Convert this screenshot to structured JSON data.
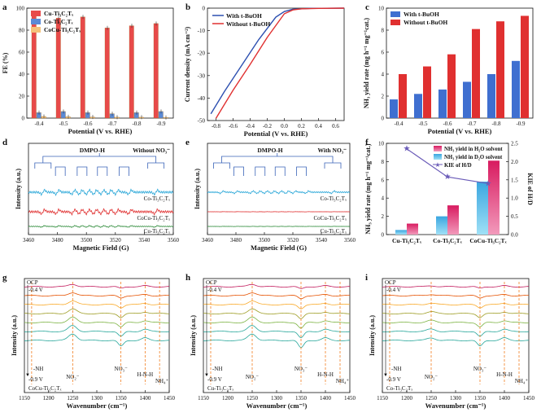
{
  "chart_data": [
    {
      "panel": "a",
      "type": "bar",
      "xlabel": "Potential (V vs. RHE)",
      "ylabel": "FE (%)",
      "ylim": [
        0,
        100
      ],
      "yticks": [
        0,
        20,
        40,
        60,
        80,
        100
      ],
      "categories": [
        "-0.4",
        "-0.5",
        "-0.6",
        "-0.7",
        "-0.8",
        "-0.9"
      ],
      "legend": [
        "Cu-Ti₃C₂Tₓ",
        "Co-Ti₃C₂Tₓ",
        "CoCu-Ti₃C₂Tₓ"
      ],
      "series": [
        {
          "name": "Cu-Ti₃C₂Tₓ",
          "color": "#f5c27a",
          "values": [
            1.5,
            1.2,
            1.0,
            0.8,
            0.8,
            0.6
          ]
        },
        {
          "name": "Co-Ti₃C₂Tₓ",
          "color": "#5b8ad6",
          "values": [
            5,
            6,
            5,
            4,
            5,
            6
          ]
        },
        {
          "name": "CoCu-Ti₃C₂Tₓ",
          "color": "#e84a4a",
          "values": [
            95,
            91,
            92,
            82,
            84,
            86
          ]
        }
      ]
    },
    {
      "panel": "b",
      "type": "line",
      "xlabel": "Potential (V vs. RHE)",
      "ylabel": "Current density (mA cm⁻²)",
      "xlim": [
        -0.9,
        0.7
      ],
      "ylim": [
        -50,
        0
      ],
      "xticks": [
        -0.8,
        -0.6,
        -0.4,
        -0.2,
        0.0,
        0.2,
        0.4,
        0.6
      ],
      "yticks": [
        0,
        -10,
        -20,
        -30,
        -40,
        -50
      ],
      "series": [
        {
          "name": "With t-BuOH",
          "color": "#2c4fb0",
          "x": [
            -0.86,
            -0.7,
            -0.5,
            -0.3,
            -0.1,
            0.0,
            0.1,
            0.3,
            0.7
          ],
          "y": [
            -47,
            -37,
            -25.5,
            -14,
            -4,
            -1.5,
            -0.5,
            -0.1,
            0
          ]
        },
        {
          "name": "Without t-BuOH",
          "color": "#e03030",
          "x": [
            -0.8,
            -0.6,
            -0.4,
            -0.2,
            0.0,
            0.1,
            0.2,
            0.4,
            0.7
          ],
          "y": [
            -49,
            -36.5,
            -25,
            -13,
            -2.5,
            -0.8,
            -0.3,
            -0.1,
            0
          ]
        }
      ]
    },
    {
      "panel": "c",
      "type": "bar",
      "xlabel": "Potential (V vs. RHE)",
      "ylabel": "NH₃ yield rate (mg h⁻¹ mg⁻¹cat.)",
      "ylim": [
        0,
        10
      ],
      "yticks": [
        0,
        2,
        4,
        6,
        8,
        10
      ],
      "categories": [
        "-0.4",
        "-0.5",
        "-0.6",
        "-0.7",
        "-0.8",
        "-0.9"
      ],
      "series": [
        {
          "name": "With t-BuOH",
          "color": "#3f6fd0",
          "values": [
            1.7,
            2.2,
            2.6,
            3.3,
            4.0,
            5.2
          ]
        },
        {
          "name": "Without t-BuOH",
          "color": "#e03030",
          "values": [
            4.0,
            4.7,
            5.8,
            8.1,
            8.8,
            9.3
          ]
        }
      ]
    },
    {
      "panel": "d",
      "type": "line",
      "xlabel": "Magnetic Field (G)",
      "ylabel": "Intensity (a.u.)",
      "xlim": [
        3460,
        3560
      ],
      "xticks": [
        3460,
        3480,
        3500,
        3520,
        3540,
        3560
      ],
      "annotations": [
        "DMPO-H",
        "Without NO₃⁻"
      ],
      "series": [
        {
          "name": "Co-Ti₃C₂Tₓ",
          "color": "#2aa7d8",
          "amplitude": 1.0
        },
        {
          "name": "CoCu-Ti₃C₂Tₓ",
          "color": "#e03030",
          "amplitude": 1.0
        },
        {
          "name": "Cu-Ti₃C₂Tₓ",
          "color": "#2e8b3a",
          "amplitude": 0.35
        }
      ]
    },
    {
      "panel": "e",
      "type": "line",
      "xlabel": "Magnetic Field (G)",
      "ylabel": "Intensity (a.u.)",
      "xlim": [
        3460,
        3560
      ],
      "xticks": [
        3460,
        3480,
        3500,
        3520,
        3540,
        3560
      ],
      "annotations": [
        "DMPO-H",
        "With NO₃⁻"
      ],
      "series": [
        {
          "name": "Co-Ti₃C₂Tₓ",
          "color": "#2aa7d8",
          "amplitude": 0.55
        },
        {
          "name": "CoCu-Ti₃C₂Tₓ",
          "color": "#e03030",
          "amplitude": 0.05
        },
        {
          "name": "Cu-Ti₃C₂Tₓ",
          "color": "#2e8b3a",
          "amplitude": 0.05
        }
      ]
    },
    {
      "panel": "f",
      "type": "bar",
      "ylabel": "NH₃ yield rate (mg h⁻¹ mg⁻¹cat.)",
      "y2label": "KIE of H/D",
      "ylim": [
        0,
        10
      ],
      "y2lim": [
        0,
        2.5
      ],
      "yticks": [
        0,
        2,
        4,
        6,
        8,
        10
      ],
      "y2ticks": [
        0.0,
        0.5,
        1.0,
        1.5,
        2.0,
        2.5
      ],
      "categories": [
        "Cu-Ti₃C₂Tₓ",
        "Co-Ti₃C₂Tₓ",
        "CoCu-Ti₃C₂Tₓ"
      ],
      "series": [
        {
          "name": "NH₃ yield in H₂O solvent",
          "color": "#e8407c",
          "values": [
            1.2,
            3.2,
            8.1
          ]
        },
        {
          "name": "NH₃ yield in D₂O solvent",
          "color": "#3fb6e6",
          "values": [
            0.5,
            2.0,
            5.8
          ]
        },
        {
          "name": "KIE of H/D",
          "color": "#6a5bb8",
          "axis": "right",
          "values": [
            2.35,
            1.58,
            1.4
          ]
        }
      ]
    },
    {
      "panel": "g",
      "type": "line",
      "xlabel": "Wavenumber (cm⁻¹)",
      "ylabel": "Intensity (a.u.)",
      "xlim": [
        1150,
        1450
      ],
      "xticks": [
        1150,
        1200,
        1250,
        1300,
        1350,
        1400,
        1450
      ],
      "sample": "CoCu-Ti₃C₂Tₓ",
      "annotations": [
        "OCP",
        "-0.4 V",
        "-0.9 V",
        "-NH",
        "NO₂⁻",
        "NO₃⁻",
        "H-N-H",
        "NH₄⁺"
      ],
      "marker_lines": [
        1165,
        1250,
        1350,
        1400,
        1430
      ]
    },
    {
      "panel": "h",
      "type": "line",
      "xlabel": "Wavenumber (cm⁻¹)",
      "ylabel": "Intensity (a.u.)",
      "xlim": [
        1150,
        1450
      ],
      "xticks": [
        1150,
        1200,
        1250,
        1300,
        1350,
        1400,
        1450
      ],
      "sample": "Cu-Ti₃C₂Tₓ",
      "annotations": [
        "OCP",
        "-0.4 V",
        "-0.9 V",
        "-NH",
        "NO₂⁻",
        "NO₃⁻",
        "H-N-H",
        "NH₄⁺"
      ],
      "marker_lines": [
        1165,
        1250,
        1350,
        1400,
        1430
      ]
    },
    {
      "panel": "i",
      "type": "line",
      "xlabel": "Wavenumber (cm⁻¹)",
      "ylabel": "Intensity (a.u.)",
      "xlim": [
        1150,
        1450
      ],
      "xticks": [
        1150,
        1200,
        1250,
        1300,
        1350,
        1400,
        1450
      ],
      "sample": "Co-Ti₃C₂Tₓ",
      "annotations": [
        "OCP",
        "-0.4 V",
        "-0.9 V",
        "-NH",
        "NO₂⁻",
        "NO₃⁻",
        "H-N-H",
        "NH₄⁺"
      ],
      "marker_lines": [
        1165,
        1250,
        1350,
        1400,
        1430
      ]
    }
  ],
  "ftir_colors": [
    "#c2185b",
    "#e65100",
    "#f9a825",
    "#9e9d24",
    "#7cb342",
    "#26a69a",
    "#26a69a"
  ]
}
